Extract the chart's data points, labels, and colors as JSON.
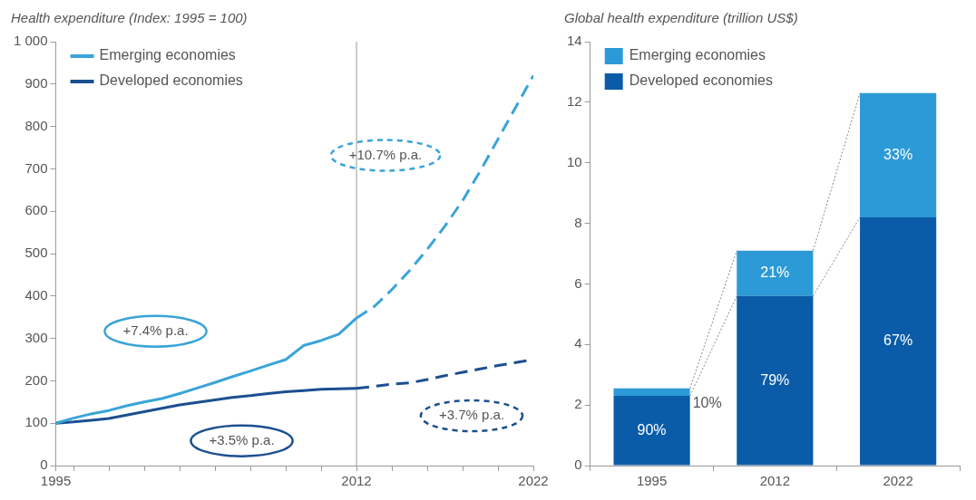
{
  "chart_data": [
    {
      "type": "line",
      "title": "Health expenditure (Index: 1995 = 100)",
      "xlim": [
        1995,
        2022
      ],
      "xticks": [
        1995,
        {
          "value": 1996,
          "label": null
        },
        {
          "value": 1998,
          "label": null
        },
        {
          "value": 2000,
          "label": null
        },
        {
          "value": 2002,
          "label": null
        },
        {
          "value": 2004,
          "label": null
        },
        {
          "value": 2006,
          "label": null
        },
        {
          "value": 2008,
          "label": null
        },
        {
          "value": 2010,
          "label": null
        },
        2012,
        {
          "value": 2014,
          "label": null
        },
        {
          "value": 2016,
          "label": null
        },
        {
          "value": 2018,
          "label": null
        },
        {
          "value": 2020,
          "label": null
        },
        2022
      ],
      "ylim": [
        0,
        1000
      ],
      "yticks": [
        0,
        100,
        200,
        300,
        400,
        500,
        600,
        700,
        800,
        900,
        {
          "value": 1000,
          "label": "1 000"
        }
      ],
      "series": [
        {
          "name": "Emerging economies",
          "color": "#3aa4d8",
          "x": [
            1995,
            1996,
            1997,
            1998,
            1999,
            2000,
            2001,
            2002,
            2003,
            2004,
            2005,
            2006,
            2007,
            2008,
            2009,
            2010,
            2011,
            2012
          ],
          "values": [
            100,
            112,
            122,
            130,
            141,
            150,
            158,
            170,
            183,
            196,
            210,
            223,
            237,
            250,
            283,
            295,
            310,
            348
          ]
        },
        {
          "name": "Developed economies",
          "color": "#1c4f8f",
          "x": [
            1995,
            1996,
            1997,
            1998,
            1999,
            2000,
            2001,
            2002,
            2003,
            2004,
            2005,
            2006,
            2007,
            2008,
            2009,
            2010,
            2011,
            2012
          ],
          "values": [
            100,
            103,
            107,
            111,
            119,
            127,
            135,
            143,
            149,
            155,
            161,
            165,
            170,
            174,
            177,
            180,
            181,
            182
          ]
        },
        {
          "color": "#3aa4d8",
          "line_style": "dashed",
          "x": [
            2012,
            2013,
            2014,
            2015,
            2016,
            2017,
            2018,
            2019,
            2020,
            2021,
            2022
          ],
          "values": [
            348,
            375,
            415,
            460,
            510,
            565,
            625,
            695,
            770,
            845,
            920
          ]
        },
        {
          "color": "#1c4f8f",
          "line_style": "dashed",
          "x": [
            2012,
            2013,
            2014,
            2015,
            2016,
            2017,
            2018,
            2019,
            2020,
            2021,
            2022
          ],
          "values": [
            182,
            187,
            192,
            195,
            203,
            212,
            220,
            228,
            236,
            243,
            250
          ]
        }
      ],
      "ref_lines": [
        {
          "axis": "x",
          "value": 2012,
          "color": "#9a9a9a"
        }
      ],
      "annotations": [
        "+7.4% p.a.",
        "+3.5% p.a.",
        "+10.7% p.a.",
        "+3.7% p.a."
      ],
      "legend": "top left"
    },
    {
      "type": "bar",
      "stacked": true,
      "title": "Global health expenditure (trillion US$)",
      "categories": [
        "1995",
        "2012",
        "2022"
      ],
      "ylim": [
        0,
        14
      ],
      "yticks": [
        0,
        2,
        4,
        6,
        8,
        10,
        12,
        14
      ],
      "series": [
        {
          "name": "Developed economies",
          "color": "#0b5ca8",
          "values": [
            2.3,
            5.6,
            8.2
          ]
        },
        {
          "name": "Emerging economies",
          "color": "#2c9ad6",
          "values": [
            0.25,
            1.5,
            4.1
          ]
        }
      ],
      "annotations": [
        "90%",
        "79%",
        "67%",
        {
          "text": "10%",
          "x": "1995",
          "y": 2.42
        },
        "21%",
        "33%"
      ],
      "legend": "top left"
    }
  ]
}
